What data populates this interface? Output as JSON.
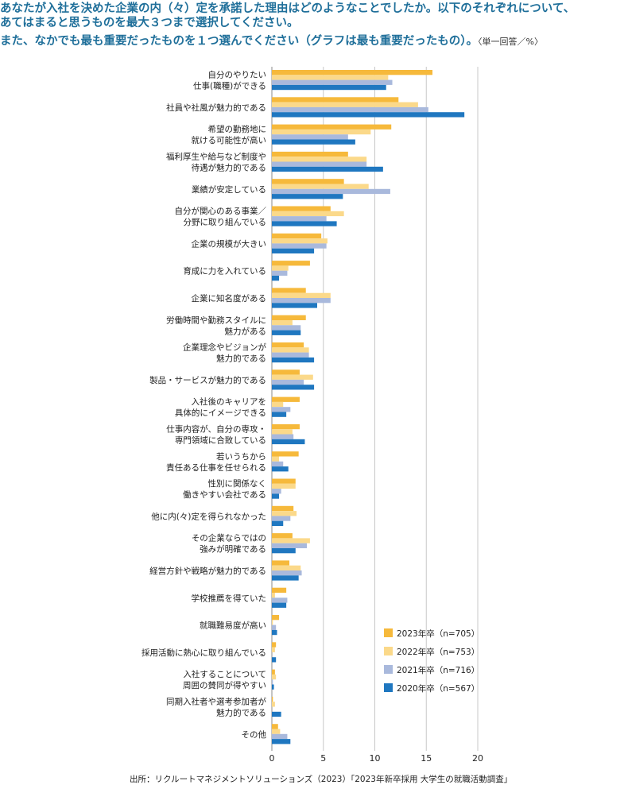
{
  "header": {
    "line1": "あなたが入社を決めた企業の内（々）定を承諾した理由はどのようなことでしたか。以下のそれぞれについて、",
    "line2": "あてはまると思うものを最大３つまで選択してください。",
    "line3": "また、なかでも最も重要だったものを１つ選んでください（グラフは最も重要だったもの）。",
    "unit": "〈単一回答／%〉"
  },
  "source": "出所：リクルートマネジメントソリューションズ（2023）「2023年新卒採用 大学生の就職活動調査」",
  "colors": {
    "s2023": "#f6b93b",
    "s2022": "#fbd98a",
    "s2021": "#a9b9dc",
    "s2020": "#1f77c0",
    "grid": "#c8c8c8"
  },
  "chart_data": {
    "type": "bar",
    "orientation": "horizontal",
    "categories": [
      [
        "自分のやりたい",
        "仕事(職種)ができる"
      ],
      [
        "社員や社風が魅力的である"
      ],
      [
        "希望の勤務地に",
        "就ける可能性が高い"
      ],
      [
        "福利厚生や給与など制度や",
        "待遇が魅力的である"
      ],
      [
        "業績が安定している"
      ],
      [
        "自分が関心のある事業／",
        "分野に取り組んでいる"
      ],
      [
        "企業の規模が大きい"
      ],
      [
        "育成に力を入れている"
      ],
      [
        "企業に知名度がある"
      ],
      [
        "労働時間や勤務スタイルに",
        "魅力がある"
      ],
      [
        "企業理念やビジョンが",
        "魅力的である"
      ],
      [
        "製品・サービスが魅力的である"
      ],
      [
        "入社後のキャリアを",
        "具体的にイメージできる"
      ],
      [
        "仕事内容が、自分の専攻・",
        "専門領域に合致している"
      ],
      [
        "若いうちから",
        "責任ある仕事を任せられる"
      ],
      [
        "性別に関係なく",
        "働きやすい会社である"
      ],
      [
        "他に内(々)定を得られなかった"
      ],
      [
        "その企業ならではの",
        "強みが明確である"
      ],
      [
        "経営方針や戦略が魅力的である"
      ],
      [
        "学校推薦を得ていた"
      ],
      [
        "就職難易度が高い"
      ],
      [
        "採用活動に熱心に取り組んでいる"
      ],
      [
        "入社することについて",
        "周囲の賛同が得やすい"
      ],
      [
        "同期入社者や選考参加者が",
        "魅力的である"
      ],
      [
        "その他"
      ]
    ],
    "series": [
      {
        "name": "2023年卒（n=705）",
        "values": [
          15.6,
          12.3,
          11.6,
          7.4,
          7.0,
          5.7,
          4.8,
          3.7,
          3.3,
          3.3,
          3.1,
          2.7,
          2.7,
          2.7,
          2.6,
          2.3,
          2.1,
          2.0,
          1.7,
          1.4,
          0.7,
          0.4,
          0.3,
          0.1,
          0.6
        ]
      },
      {
        "name": "2022年卒（n=753）",
        "values": [
          11.3,
          14.2,
          9.6,
          9.2,
          9.4,
          7.0,
          5.4,
          1.6,
          5.7,
          2.0,
          3.6,
          4.0,
          1.1,
          2.0,
          0.7,
          2.3,
          2.4,
          3.7,
          2.8,
          0.3,
          0.1,
          0.3,
          0.4,
          0.3,
          0.8
        ]
      },
      {
        "name": "2021年卒（n=716）",
        "values": [
          11.7,
          15.2,
          7.4,
          9.2,
          11.5,
          5.3,
          5.3,
          1.5,
          5.7,
          2.8,
          3.6,
          3.1,
          1.8,
          2.1,
          1.1,
          0.9,
          1.8,
          3.4,
          2.9,
          1.5,
          0.4,
          0.0,
          0.1,
          0.0,
          1.5
        ]
      },
      {
        "name": "2020年卒（n=567）",
        "values": [
          11.1,
          18.7,
          8.1,
          10.8,
          6.9,
          6.3,
          4.1,
          0.7,
          4.4,
          2.8,
          4.1,
          4.1,
          1.4,
          3.2,
          1.6,
          0.7,
          1.1,
          2.3,
          2.6,
          1.4,
          0.5,
          0.4,
          0.2,
          0.9,
          1.8
        ]
      }
    ],
    "xlim": [
      0,
      20
    ],
    "xticks": [
      "0",
      "5",
      "10",
      "15",
      "20"
    ],
    "grid": true,
    "legend": "bottom-right"
  }
}
